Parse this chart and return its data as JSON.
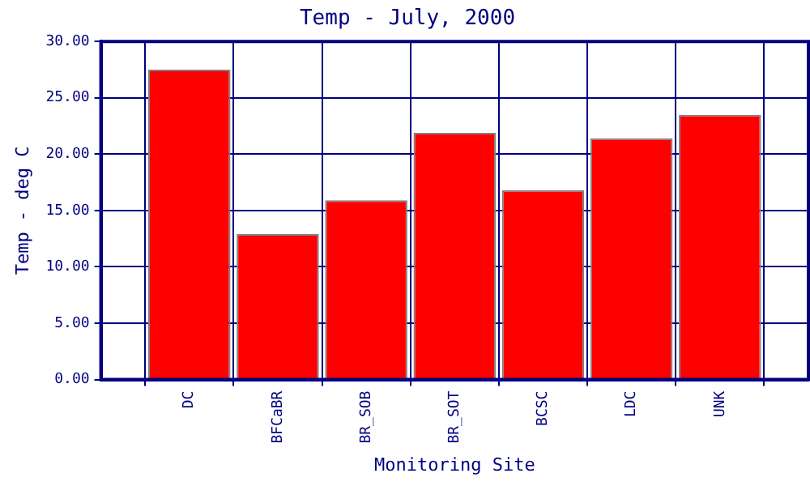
{
  "chart_data": {
    "type": "bar",
    "title": "Temp - July, 2000",
    "xlabel": "Monitoring Site",
    "ylabel": "Temp - deg C",
    "categories": [
      "DC",
      "BFCaBR",
      "BR_SOB",
      "BR_SOT",
      "BCSC",
      "LDC",
      "UNK"
    ],
    "values": [
      27.5,
      12.9,
      15.9,
      21.9,
      16.8,
      21.4,
      23.5
    ],
    "color": "#ff0000",
    "ylim": [
      0,
      30
    ],
    "yticks": [
      {
        "value": 0,
        "label": "0.00"
      },
      {
        "value": 5,
        "label": "5.00"
      },
      {
        "value": 10,
        "label": "10.00"
      },
      {
        "value": 15,
        "label": "15.00"
      },
      {
        "value": 20,
        "label": "20.00"
      },
      {
        "value": 25,
        "label": "25.00"
      },
      {
        "value": 30,
        "label": "30.00"
      }
    ],
    "grid": true,
    "legend": false
  }
}
